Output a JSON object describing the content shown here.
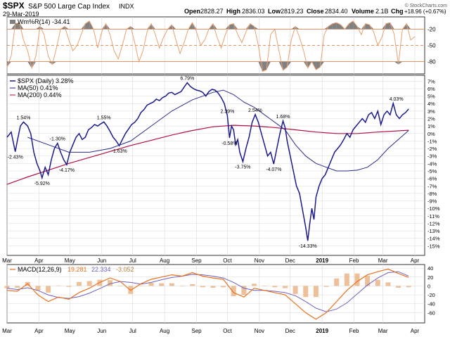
{
  "header": {
    "symbol": "$SPX",
    "name": "S&P 500 Large Cap Index",
    "exchange": "INDX",
    "date": "29-Mar-2019",
    "open_label": "Open",
    "open": "2828.27",
    "high_label": "High",
    "high": "2836.03",
    "low_label": "Low",
    "low": "2819.23",
    "close_label": "Close",
    "close": "2834.40",
    "volume_label": "Volume",
    "volume": "2.1B",
    "chg_label": "Chg",
    "chg": "+18.96 (+0.67%)",
    "watermark": "© StockCharts.com"
  },
  "colors": {
    "price": "#1a1a8c",
    "ma50": "#2b2b8a",
    "ma200": "#b01040",
    "willr": "#e8a070",
    "willr_fill": "#808080",
    "macd": "#e87020",
    "macd_signal": "#7060c0",
    "macd_hist": "#e8b080",
    "grid": "#d8d8d8",
    "frame": "#000000",
    "band": "#e07030"
  },
  "chart_data": [
    {
      "panel": "williams_r",
      "type": "line",
      "legend": [
        "Wm%R(14) -34.41"
      ],
      "ylim": [
        -100,
        0
      ],
      "y_ticks": [
        "-20",
        "-50",
        "-80"
      ],
      "reference_lines": [
        -20,
        -50,
        -80
      ],
      "x": [
        0,
        4,
        8,
        12,
        16,
        20,
        24,
        28,
        32,
        36,
        40,
        44,
        48,
        52,
        56,
        60,
        64,
        68,
        72,
        76,
        80,
        84,
        88,
        92,
        96,
        100,
        104,
        108,
        112,
        116,
        120,
        124,
        128,
        132,
        136,
        140,
        144,
        148,
        152,
        156,
        160,
        164,
        168,
        172,
        176,
        180,
        184,
        188,
        192,
        196,
        200,
        204,
        208,
        212,
        216,
        220,
        224,
        228,
        232,
        236,
        240,
        244,
        248,
        252,
        256,
        260,
        264,
        268,
        272,
        276,
        280,
        284,
        288,
        292,
        296,
        300,
        304,
        308,
        312,
        316,
        320,
        324,
        328,
        332,
        336,
        340,
        344,
        348,
        352,
        356,
        360,
        364,
        368,
        372,
        376,
        380,
        384,
        388,
        392,
        396
      ],
      "values": [
        -90,
        -70,
        -10,
        -8,
        -40,
        -60,
        -92,
        -70,
        -15,
        -30,
        -70,
        -85,
        -55,
        -20,
        -15,
        -40,
        -60,
        -50,
        -30,
        -10,
        -5,
        -20,
        -55,
        -25,
        -10,
        -30,
        -60,
        -75,
        -50,
        -20,
        -15,
        -45,
        -80,
        -60,
        -25,
        -10,
        -30,
        -55,
        -35,
        -20,
        -12,
        -40,
        -65,
        -45,
        -20,
        -8,
        -25,
        -50,
        -40,
        -20,
        -10,
        -35,
        -55,
        -30,
        -12,
        -10,
        -30,
        -45,
        -25,
        -10,
        -15,
        -50,
        -98,
        -95,
        -30,
        -20,
        -60,
        -96,
        -90,
        -40,
        -15,
        -35,
        -60,
        -92,
        -80,
        -95,
        -90,
        -30,
        -15,
        -10,
        -8,
        -12,
        -20,
        -10,
        -5,
        -15,
        -30,
        -10,
        -12,
        -25,
        -50,
        -35,
        -10,
        -8,
        -30,
        -85,
        -20,
        -10,
        -40,
        -34
      ]
    },
    {
      "panel": "price",
      "type": "line",
      "y_units": "percent change",
      "ylim": [
        -16,
        7.5
      ],
      "y_ticks": [
        "7%",
        "6%",
        "5%",
        "4%",
        "3%",
        "2%",
        "1%",
        "0%",
        "-1%",
        "-2%",
        "-3%",
        "-4%",
        "-5%",
        "-6%",
        "-7%",
        "-8%",
        "-9%",
        "-10%",
        "-11%",
        "-12%",
        "-13%",
        "-14%",
        "-15%"
      ],
      "x_ticks": [
        "Mar",
        "Apr",
        "May",
        "Jun",
        "Jul",
        "Aug",
        "Sep",
        "Oct",
        "Nov",
        "Dec",
        "2019",
        "Feb",
        "Mar",
        "Apr"
      ],
      "x_tick_days": [
        0,
        31,
        61,
        92,
        122,
        153,
        184,
        214,
        245,
        275,
        306,
        337,
        365,
        396
      ],
      "series": [
        {
          "name": "$SPX (Daily) 3.28%",
          "x": [
            0,
            4,
            8,
            10,
            13,
            16,
            20,
            23,
            26,
            29,
            32,
            34,
            37,
            40,
            43,
            46,
            49,
            52,
            55,
            58,
            61,
            64,
            67,
            70,
            73,
            76,
            79,
            82,
            85,
            88,
            91,
            94,
            97,
            100,
            103,
            106,
            109,
            112,
            115,
            118,
            121,
            124,
            127,
            130,
            133,
            136,
            139,
            142,
            145,
            148,
            151,
            154,
            157,
            160,
            163,
            166,
            169,
            172,
            175,
            178,
            181,
            184,
            187,
            190,
            193,
            196,
            199,
            202,
            205,
            208,
            211,
            214,
            216,
            218,
            220,
            222,
            224,
            226,
            229,
            232,
            235,
            238,
            241,
            244,
            247,
            250,
            253,
            256,
            259,
            262,
            265,
            268,
            270,
            272,
            275,
            278,
            281,
            284,
            286,
            288,
            290,
            292,
            294,
            296,
            298,
            300,
            303,
            306,
            309,
            312,
            315,
            318,
            321,
            324,
            327,
            330,
            333,
            336,
            339,
            342,
            345,
            348,
            351,
            354,
            357,
            360,
            363,
            366,
            369,
            372,
            375,
            378,
            381,
            384,
            387,
            390
          ],
          "values": [
            -0.5,
            0.2,
            -2.43,
            -1.0,
            1.0,
            1.54,
            1.0,
            0.0,
            -2.5,
            -4.0,
            -5.0,
            -5.92,
            -4.5,
            -5.5,
            -3.5,
            -2.0,
            -1.3,
            -2.5,
            -3.5,
            -4.17,
            -2.5,
            -1.5,
            -0.5,
            0.0,
            -0.8,
            -0.5,
            0.5,
            0.8,
            1.2,
            1.0,
            1.3,
            1.55,
            1.0,
            0.3,
            -0.5,
            -1.0,
            -1.63,
            -0.8,
            0.0,
            0.6,
            1.2,
            1.5,
            2.0,
            2.8,
            3.2,
            3.8,
            4.0,
            4.2,
            4.6,
            4.4,
            4.8,
            5.0,
            5.4,
            5.5,
            5.2,
            5.4,
            5.6,
            6.2,
            6.79,
            6.3,
            6.0,
            5.8,
            5.7,
            5.5,
            5.0,
            5.6,
            5.9,
            5.8,
            5.4,
            4.8,
            4.0,
            2.39,
            -0.58,
            1.0,
            0.5,
            -1.5,
            -0.8,
            -2.5,
            -3.75,
            -2.0,
            -0.5,
            1.5,
            2.54,
            1.5,
            0.0,
            -1.5,
            -3.0,
            -2.5,
            -4.07,
            -2.0,
            0.0,
            1.68,
            0.8,
            -1.0,
            -3.0,
            -5.0,
            -7.0,
            -8.0,
            -9.5,
            -11.0,
            -12.5,
            -14.33,
            -12.0,
            -10.0,
            -11.5,
            -8.5,
            -7.0,
            -6.0,
            -5.5,
            -4.5,
            -3.5,
            -2.5,
            -2.0,
            -1.5,
            -0.8,
            0.0,
            -0.5,
            0.5,
            1.0,
            1.5,
            2.0,
            1.5,
            2.5,
            2.8,
            2.0,
            3.0,
            1.2,
            2.5,
            3.0,
            2.5,
            4.03,
            2.5,
            2.0,
            2.5,
            2.8,
            3.28
          ]
        },
        {
          "name": "MA(50) 0.41%",
          "x": [
            20,
            40,
            60,
            80,
            100,
            120,
            140,
            160,
            180,
            200,
            210,
            220,
            230,
            240,
            250,
            260,
            270,
            280,
            290,
            300,
            310,
            320,
            330,
            340,
            350,
            360,
            370,
            380,
            390
          ],
          "values": [
            -0.5,
            -1.5,
            -2.5,
            -2.5,
            -2.0,
            -1.0,
            1.0,
            3.0,
            4.5,
            5.5,
            5.8,
            5.2,
            4.2,
            3.5,
            2.5,
            1.5,
            0.5,
            -1.5,
            -3.0,
            -4.0,
            -4.5,
            -5.0,
            -5.0,
            -4.9,
            -4.5,
            -3.5,
            -2.0,
            -0.8,
            0.41
          ]
        },
        {
          "name": "MA(200) 0.44%",
          "x": [
            0,
            20,
            40,
            60,
            80,
            100,
            120,
            140,
            160,
            180,
            200,
            220,
            240,
            260,
            280,
            300,
            320,
            340,
            360,
            390
          ],
          "values": [
            -6.8,
            -5.8,
            -4.9,
            -4.0,
            -3.2,
            -2.4,
            -1.6,
            -0.9,
            -0.2,
            0.4,
            0.9,
            1.1,
            1.0,
            0.8,
            0.5,
            0.2,
            0.0,
            0.0,
            0.2,
            0.44
          ]
        }
      ],
      "annotations": [
        {
          "text": "1.54%",
          "x": 16,
          "y": 1.54,
          "pos": "above"
        },
        {
          "text": "-2.43%",
          "x": 8,
          "y": -2.43,
          "pos": "below"
        },
        {
          "text": "-5.92%",
          "x": 34,
          "y": -5.92,
          "pos": "below"
        },
        {
          "text": "-1.30%",
          "x": 49,
          "y": -1.3,
          "pos": "above"
        },
        {
          "text": "-4.17%",
          "x": 58,
          "y": -4.17,
          "pos": "below"
        },
        {
          "text": "1.55%",
          "x": 94,
          "y": 1.55,
          "pos": "above"
        },
        {
          "text": "-1.63%",
          "x": 109,
          "y": -1.63,
          "pos": "below"
        },
        {
          "text": "6.79%",
          "x": 175,
          "y": 6.79,
          "pos": "above"
        },
        {
          "text": "2.39%",
          "x": 214,
          "y": 2.39,
          "pos": "above"
        },
        {
          "text": "-0.58%",
          "x": 216,
          "y": -0.58,
          "pos": "below"
        },
        {
          "text": "-3.75%",
          "x": 229,
          "y": -3.75,
          "pos": "below"
        },
        {
          "text": "2.54%",
          "x": 241,
          "y": 2.54,
          "pos": "above"
        },
        {
          "text": "-4.07%",
          "x": 259,
          "y": -4.07,
          "pos": "below"
        },
        {
          "text": "1.68%",
          "x": 268,
          "y": 1.68,
          "pos": "above"
        },
        {
          "text": "-14.33%",
          "x": 292,
          "y": -14.33,
          "pos": "below"
        },
        {
          "text": "4.03%",
          "x": 378,
          "y": 4.03,
          "pos": "above"
        }
      ]
    },
    {
      "panel": "macd",
      "type": "line",
      "legend": [
        "MACD(12,26,9)",
        "19.281",
        "22.334",
        "-3.052"
      ],
      "ylim": [
        -80,
        45
      ],
      "y_ticks": [
        "40",
        "20",
        "0",
        "-20",
        "-40",
        "-60"
      ],
      "x_ticks": [
        "Mar",
        "Apr",
        "May",
        "Jun",
        "Jul",
        "Aug",
        "Sep",
        "Oct",
        "Nov",
        "Dec",
        "2019",
        "Feb",
        "Mar",
        "Apr"
      ],
      "series": [
        {
          "name": "MACD",
          "x": [
            0,
            10,
            20,
            30,
            40,
            50,
            60,
            70,
            80,
            90,
            100,
            110,
            120,
            130,
            140,
            150,
            160,
            170,
            180,
            190,
            200,
            210,
            220,
            230,
            240,
            250,
            260,
            270,
            280,
            290,
            300,
            310,
            320,
            330,
            340,
            350,
            360,
            370,
            380,
            390
          ],
          "values": [
            -10,
            -12,
            5,
            -20,
            -35,
            -25,
            -30,
            -15,
            -5,
            8,
            18,
            10,
            -10,
            5,
            15,
            20,
            25,
            22,
            30,
            22,
            18,
            15,
            -15,
            -25,
            -5,
            -10,
            -15,
            -20,
            -40,
            -60,
            -75,
            -60,
            -35,
            -10,
            10,
            25,
            32,
            38,
            28,
            19.281
          ]
        },
        {
          "name": "Signal",
          "x": [
            0,
            10,
            20,
            30,
            40,
            50,
            60,
            70,
            80,
            90,
            100,
            110,
            120,
            130,
            140,
            150,
            160,
            170,
            180,
            190,
            200,
            210,
            220,
            230,
            240,
            250,
            260,
            270,
            280,
            290,
            300,
            310,
            320,
            330,
            340,
            350,
            360,
            370,
            380,
            390
          ],
          "values": [
            -5,
            -8,
            -4,
            -10,
            -20,
            -26,
            -28,
            -24,
            -16,
            -6,
            5,
            10,
            8,
            4,
            8,
            14,
            19,
            22,
            26,
            25,
            22,
            18,
            8,
            -5,
            -10,
            -10,
            -12,
            -15,
            -22,
            -35,
            -50,
            -58,
            -52,
            -38,
            -18,
            2,
            18,
            30,
            32,
            22.334
          ]
        }
      ],
      "histogram": [
        -5,
        -4,
        9,
        -10,
        -15,
        1,
        -2,
        9,
        11,
        14,
        13,
        0,
        -18,
        1,
        7,
        6,
        6,
        0,
        4,
        -3,
        -4,
        -3,
        -23,
        -20,
        5,
        0,
        -3,
        -5,
        -18,
        -25,
        -25,
        -2,
        17,
        28,
        28,
        23,
        14,
        8,
        -4,
        -3.052
      ]
    }
  ]
}
